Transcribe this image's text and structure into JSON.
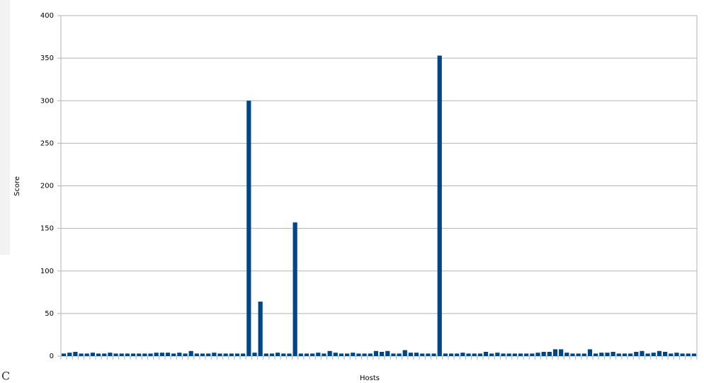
{
  "chart_data": {
    "type": "bar",
    "x_label": "Hosts",
    "y_label": "Score",
    "corner_text": "C",
    "color": "#004586",
    "grid": true,
    "ylim": [
      0,
      400
    ],
    "yticks": [
      0,
      50,
      100,
      150,
      200,
      250,
      300,
      350,
      400
    ],
    "categories": [
      null,
      null,
      null,
      null,
      null,
      null,
      null,
      null,
      null,
      null,
      null,
      null,
      null,
      null,
      null,
      null,
      null,
      null,
      null,
      null,
      null,
      null,
      null,
      null,
      null,
      null,
      null,
      null,
      null,
      null,
      null,
      null,
      null,
      null,
      null,
      null,
      null,
      null,
      null,
      null,
      null,
      null,
      null,
      null,
      null,
      null,
      null,
      null,
      null,
      null,
      null,
      null,
      null,
      null,
      null,
      null,
      null,
      null,
      null,
      null,
      null,
      null,
      null,
      null,
      null,
      null,
      null,
      null,
      null,
      null,
      null,
      null,
      null,
      null,
      null,
      null,
      null,
      null,
      null,
      null,
      null,
      null,
      null,
      null,
      null,
      null,
      null,
      null,
      null,
      null,
      null,
      null,
      null,
      null,
      null,
      null,
      null,
      null,
      null,
      null,
      null,
      null,
      null,
      null,
      null,
      null,
      null,
      null,
      null,
      null
    ],
    "values": [
      3,
      4,
      5,
      3,
      3,
      4,
      3,
      3,
      4,
      3,
      3,
      3,
      3,
      3,
      3,
      3,
      4,
      4,
      4,
      3,
      4,
      3,
      6,
      3,
      3,
      3,
      4,
      3,
      3,
      3,
      3,
      3,
      300,
      4,
      64,
      3,
      3,
      4,
      3,
      3,
      157,
      3,
      3,
      3,
      4,
      3,
      6,
      4,
      3,
      3,
      4,
      3,
      3,
      3,
      6,
      5,
      6,
      3,
      3,
      7,
      4,
      4,
      3,
      3,
      3,
      353,
      3,
      3,
      3,
      4,
      3,
      3,
      3,
      5,
      3,
      4,
      3,
      3,
      3,
      3,
      3,
      3,
      4,
      5,
      5,
      8,
      8,
      4,
      3,
      3,
      3,
      8,
      3,
      4,
      4,
      5,
      3,
      3,
      3,
      5,
      6,
      3,
      4,
      6,
      5,
      3,
      4,
      3,
      3,
      3
    ]
  }
}
